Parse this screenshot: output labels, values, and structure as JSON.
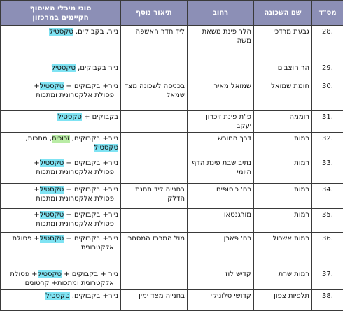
{
  "table": {
    "headers": {
      "num": "מס\"ד",
      "neighborhood": "שם השכונה",
      "street": "רחוב",
      "description": "תיאור נוסף",
      "recycling": [
        "סוגי מיכלי האיסוף",
        "הקיימים במרכזון"
      ]
    },
    "rows": [
      {
        "num": ".28",
        "neighborhood": "גבעת מרדכי",
        "street": [
          "הלר פינת משאת",
          "משה"
        ],
        "description": "ליד חדר האשפה",
        "recycling": [
          [
            {
              "t": "נייר, בקבוקים, "
            },
            {
              "t": "טקסטיל",
              "hl": "tex"
            }
          ]
        ]
      },
      {
        "num": ".29",
        "neighborhood": "הר חוצבים",
        "street": [],
        "description": "",
        "recycling": [
          [
            {
              "t": "נייר בקבוקים, "
            },
            {
              "t": "טקסטיל",
              "hl": "tex"
            }
          ]
        ]
      },
      {
        "num": ".30",
        "neighborhood": "חומת שמואל",
        "street": [
          "שמואל מאיר"
        ],
        "description": "בכניסה לשכונה מצד שמאל",
        "recycling": [
          [
            {
              "t": "נייר+ בקבוקים + "
            },
            {
              "t": "טקסטיל",
              "hl": "tex"
            },
            {
              "t": "+"
            }
          ],
          [
            {
              "t": "פסולת אלקטרונית ומתכות"
            }
          ]
        ]
      },
      {
        "num": ".31",
        "neighborhood": "רוממה",
        "street": [
          "פ\"ת פינת זיכרון",
          "יעקב"
        ],
        "description": "",
        "recycling": [
          [
            {
              "t": "בקבוקים + "
            },
            {
              "t": "טקסטיל",
              "hl": "tex"
            }
          ]
        ]
      },
      {
        "num": ".32",
        "neighborhood": "רמות",
        "street": [
          "דרך החורש"
        ],
        "description": "",
        "recycling": [
          [
            {
              "t": "נייר+ בקבוקים, "
            },
            {
              "t": "זכוכית",
              "hl": "green"
            },
            {
              "t": ", מתכות, "
            },
            {
              "t": "טקסטיל",
              "hl": "tex"
            }
          ]
        ]
      },
      {
        "num": ".33",
        "neighborhood": "רמות",
        "street": [
          "נתיב שבת פינת הדף",
          "היומי"
        ],
        "description": "",
        "recycling": [
          [
            {
              "t": "נייר+ בקבוקים + "
            },
            {
              "t": "טקסטיל",
              "hl": "tex"
            },
            {
              "t": "+"
            }
          ],
          [
            {
              "t": "פסולת אלקטרונית ומתכות"
            }
          ]
        ]
      },
      {
        "num": ".34",
        "neighborhood": "רמות",
        "street": [
          "רח' כיסופים"
        ],
        "description": "בחנייה ליד תחנת הדלק",
        "recycling": [
          [
            {
              "t": "נייר+ בקבוקים + "
            },
            {
              "t": "טקסטיל",
              "hl": "tex"
            },
            {
              "t": "+"
            }
          ],
          [
            {
              "t": "פסולת אלקטרונית ומתכות"
            }
          ]
        ]
      },
      {
        "num": ".35",
        "neighborhood": "רמות",
        "street": [
          "מורגנטאו"
        ],
        "description": "",
        "recycling": [
          [
            {
              "t": "נייר+ בקבוקים + "
            },
            {
              "t": "טקסטיל",
              "hl": "tex"
            },
            {
              "t": "+"
            }
          ],
          [
            {
              "t": "פסולת אלקטרונית ומתכות"
            }
          ]
        ]
      },
      {
        "num": ".36",
        "neighborhood": "רמות אשכול",
        "street": [
          "רח' פארן"
        ],
        "description": "מול המרכז המסחרי",
        "recycling": [
          [
            {
              "t": "נייר+ בקבוקים + "
            },
            {
              "t": "טקסטיל",
              "hl": "tex"
            },
            {
              "t": "+ פסולת"
            }
          ],
          [
            {
              "t": "אלקטרונית"
            }
          ]
        ]
      },
      {
        "num": ".37",
        "neighborhood": "רמות שרת",
        "street": [
          "קדיש לוז"
        ],
        "description": "",
        "recycling": [
          [
            {
              "t": "נייר + בקבוקים + "
            },
            {
              "t": "טקסטיל",
              "hl": "tex"
            },
            {
              "t": "+ פסולת"
            }
          ],
          [
            {
              "t": "אלקטרונית ומתכות+ קרטונים"
            }
          ]
        ]
      },
      {
        "num": ".38",
        "neighborhood": "תלפיות צפון",
        "street": [
          "קדושי סלוניקי"
        ],
        "description": "בחנייה מצד ימין",
        "recycling": [
          [
            {
              "t": "נייר+ בקבוקים, "
            },
            {
              "t": "טקסטיל",
              "hl": "tex"
            }
          ]
        ]
      }
    ]
  }
}
